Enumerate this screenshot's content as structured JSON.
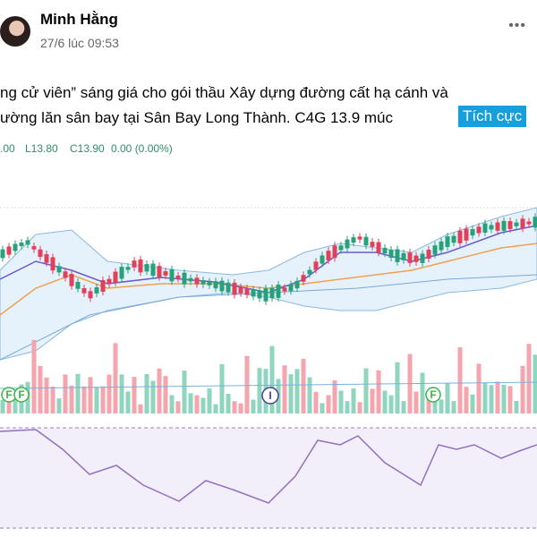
{
  "header": {
    "name": "Minh Hằng",
    "time": "27/6 lúc 09:53",
    "menu": "•••"
  },
  "post": {
    "lines": [
      "ng cử viên” sáng giá cho gói thầu Xây dựng đường cất hạ cánh và",
      "ường lăn sân bay tại Sân Bay Long Thành. C4G 13.9 múc"
    ],
    "tag": "Tích cực"
  },
  "chart": {
    "legend": [
      ".00",
      "L13.80",
      "C13.90",
      "0.00 (0.00%)"
    ],
    "markers": [
      "F",
      "F",
      "I",
      "F"
    ]
  }
}
